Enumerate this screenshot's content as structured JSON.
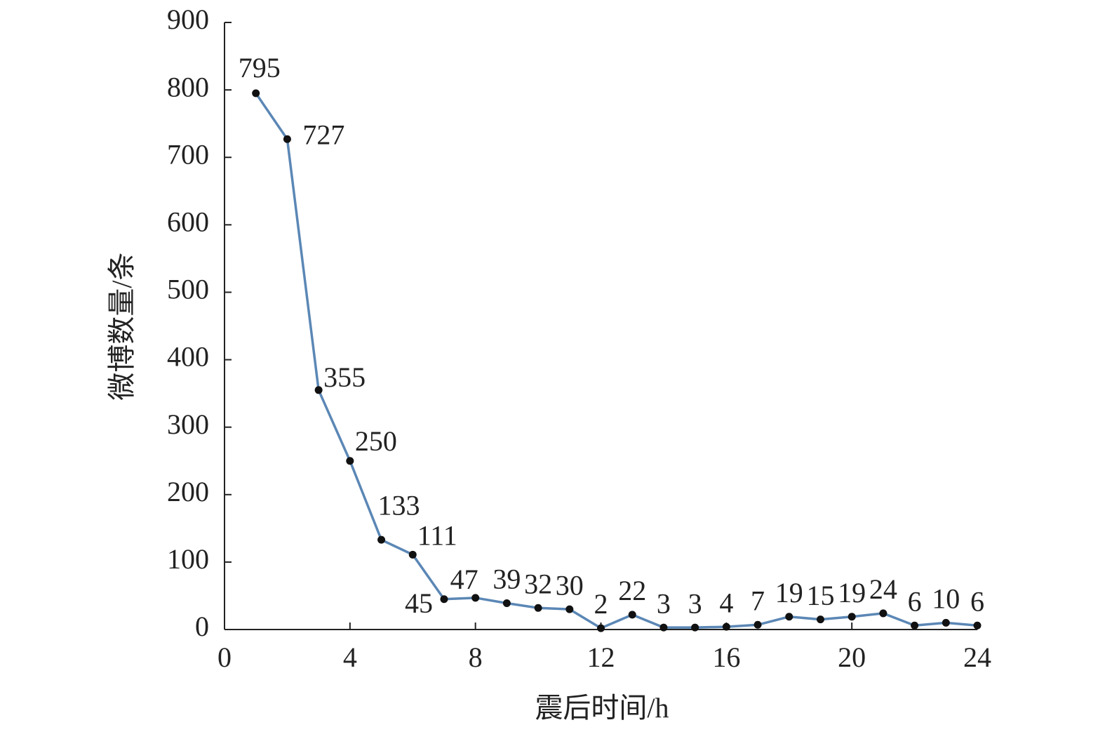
{
  "chart_data": {
    "type": "line",
    "x_label": "震后时间/h",
    "y_label": "微博数量/条",
    "x": [
      1,
      2,
      3,
      4,
      5,
      6,
      7,
      8,
      9,
      10,
      11,
      12,
      13,
      14,
      15,
      16,
      17,
      18,
      19,
      20,
      21,
      22,
      23,
      24
    ],
    "series": [
      {
        "name": "微博数量",
        "color": "#5b87b5",
        "values": [
          795,
          727,
          355,
          250,
          133,
          111,
          45,
          47,
          39,
          32,
          30,
          2,
          22,
          3,
          3,
          4,
          7,
          19,
          15,
          19,
          24,
          6,
          10,
          6
        ]
      }
    ],
    "xlim": [
      0,
      24
    ],
    "xticks": [
      0,
      4,
      8,
      12,
      16,
      20,
      24
    ],
    "ylim": [
      0,
      900
    ],
    "yticks": [
      0,
      100,
      200,
      300,
      400,
      500,
      600,
      700,
      800,
      900
    ],
    "marker_color": "#111111"
  }
}
